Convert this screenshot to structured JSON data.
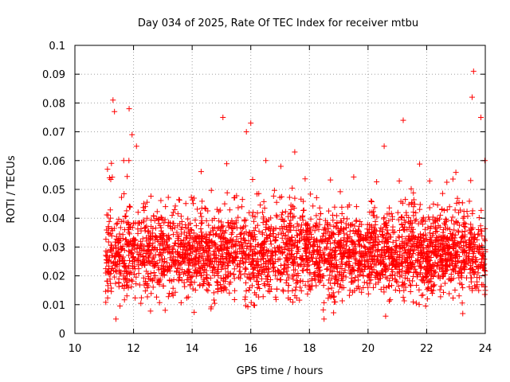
{
  "chart_data": {
    "type": "scatter",
    "title": "Day 034 of 2025, Rate Of TEC Index for receiver mtbu",
    "xlabel": "GPS time / hours",
    "ylabel": "ROTI / TECUs",
    "xlim": [
      10,
      24
    ],
    "ylim": [
      0,
      0.1
    ],
    "x_ticks": [
      10,
      12,
      14,
      16,
      18,
      20,
      22,
      24
    ],
    "x_tick_labels": [
      "10",
      "12",
      "14",
      "16",
      "18",
      "20",
      "22",
      "24"
    ],
    "y_ticks": [
      0,
      0.01,
      0.02,
      0.03,
      0.04,
      0.05,
      0.06,
      0.07,
      0.08,
      0.09,
      0.1
    ],
    "y_tick_labels": [
      "0",
      "0.01",
      "0.02",
      "0.03",
      "0.04",
      "0.05",
      "0.06",
      "0.07",
      "0.08",
      "0.09",
      "0.1"
    ],
    "grid": true,
    "marker": "+",
    "series": [
      {
        "name": "ROTI",
        "color": "#ff0000",
        "x_range": [
          11.05,
          24.0
        ],
        "typical_range": [
          0.01,
          0.045
        ],
        "notable_points": [
          {
            "x": 11.3,
            "y": 0.081
          },
          {
            "x": 11.35,
            "y": 0.077
          },
          {
            "x": 11.85,
            "y": 0.078
          },
          {
            "x": 11.95,
            "y": 0.069
          },
          {
            "x": 12.1,
            "y": 0.065
          },
          {
            "x": 15.05,
            "y": 0.075
          },
          {
            "x": 15.85,
            "y": 0.07
          },
          {
            "x": 16.0,
            "y": 0.073
          },
          {
            "x": 17.5,
            "y": 0.063
          },
          {
            "x": 20.55,
            "y": 0.065
          },
          {
            "x": 21.2,
            "y": 0.074
          },
          {
            "x": 23.55,
            "y": 0.082
          },
          {
            "x": 23.6,
            "y": 0.091
          },
          {
            "x": 23.85,
            "y": 0.075
          },
          {
            "x": 11.4,
            "y": 0.005
          },
          {
            "x": 18.5,
            "y": 0.005
          },
          {
            "x": 20.6,
            "y": 0.006
          }
        ]
      }
    ]
  }
}
